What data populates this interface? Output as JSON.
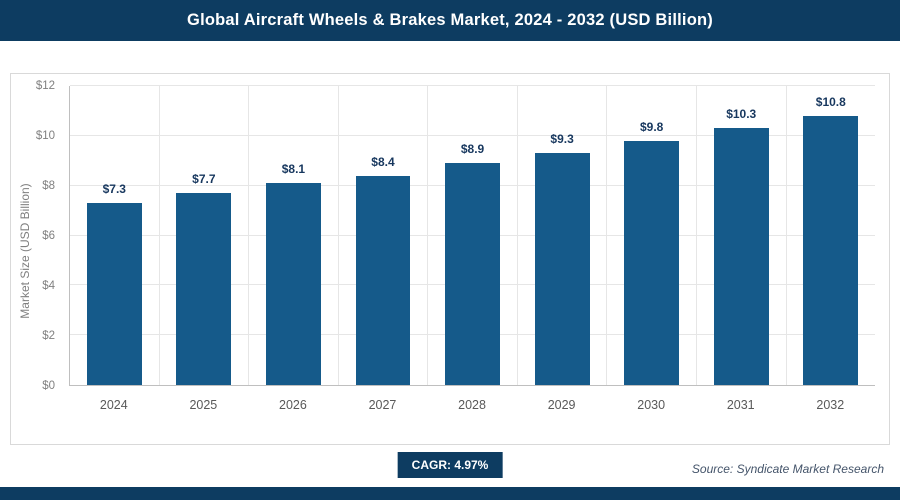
{
  "header": {
    "title": "Global Aircraft Wheels & Brakes Market, 2024 - 2032 (USD Billion)"
  },
  "chart_data": {
    "type": "bar",
    "title": "Global Aircraft Wheels & Brakes Market, 2024 - 2032 (USD Billion)",
    "categories": [
      "2024",
      "2025",
      "2026",
      "2027",
      "2028",
      "2029",
      "2030",
      "2031",
      "2032"
    ],
    "values": [
      7.3,
      7.7,
      8.1,
      8.4,
      8.9,
      9.3,
      9.8,
      10.3,
      10.8
    ],
    "value_labels": [
      "$7.3",
      "$7.7",
      "$8.1",
      "$8.4",
      "$8.9",
      "$9.3",
      "$9.8",
      "$10.3",
      "$10.8"
    ],
    "xlabel": "",
    "ylabel": "Market Size (USD Billion)",
    "ylim": [
      0,
      12
    ],
    "ytick_step": 2,
    "ytick_labels": [
      "$0",
      "$2",
      "$4",
      "$6",
      "$8",
      "$10",
      "$12"
    ],
    "grid": true,
    "legend": "none",
    "bar_color": "#155a8a"
  },
  "footer": {
    "cagr_label": "CAGR: 4.97%",
    "source": "Source: Syndicate Market Research"
  },
  "colors": {
    "header_bg": "#0d3c61",
    "bar": "#155a8a",
    "value_label": "#17375e",
    "axis_text": "#7f7f7f",
    "gridline": "#e6e6e6"
  }
}
